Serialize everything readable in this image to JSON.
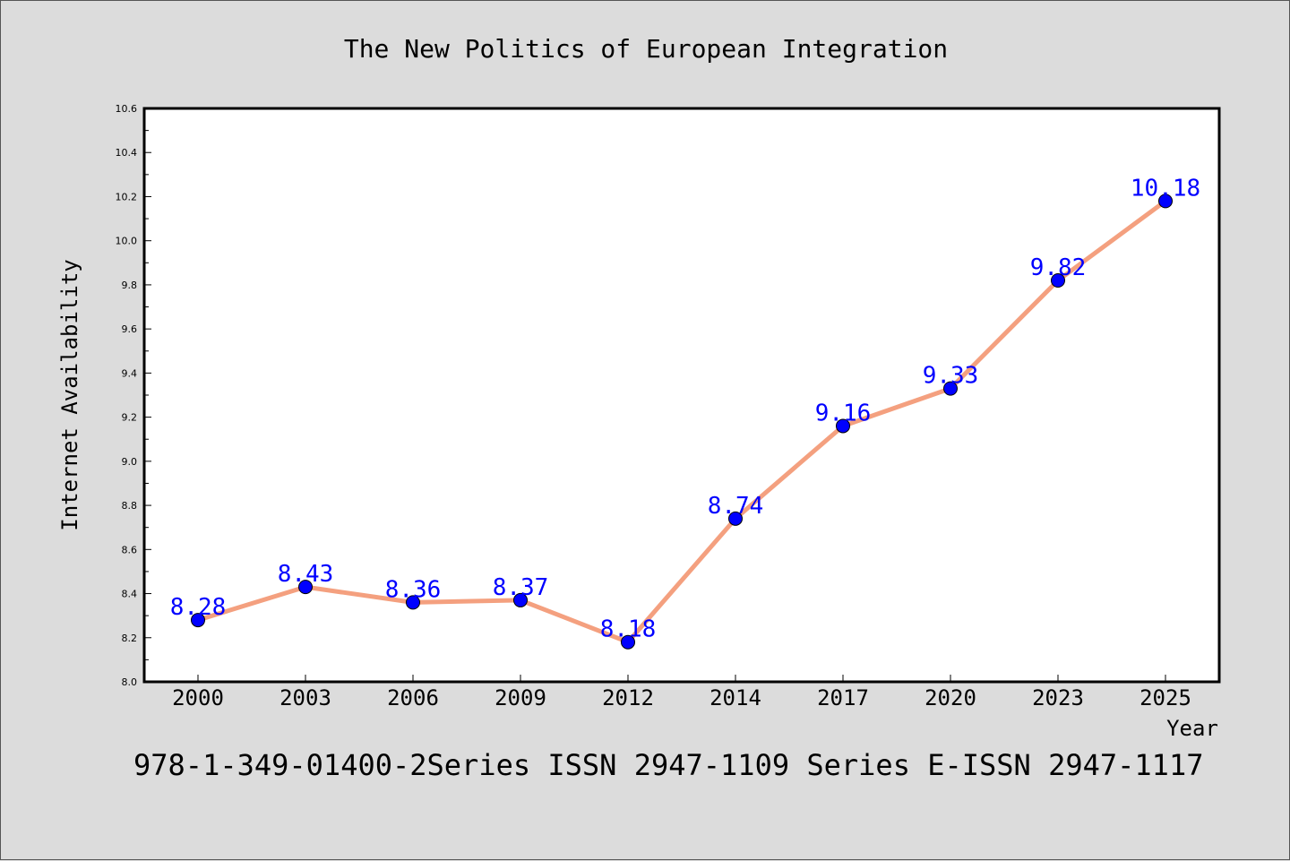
{
  "chart_data": {
    "type": "line",
    "title": "The New Politics of European Integration",
    "xlabel": "Year",
    "ylabel": "Internet Availability",
    "categories": [
      "2000",
      "2003",
      "2006",
      "2009",
      "2012",
      "2014",
      "2017",
      "2020",
      "2023",
      "2025"
    ],
    "series": [
      {
        "values": [
          8.28,
          8.43,
          8.36,
          8.37,
          8.18,
          8.74,
          9.16,
          9.33,
          9.82,
          10.18
        ],
        "line_color": "#f4a07f",
        "marker_color": "#0000ff"
      }
    ],
    "data_labels": [
      "8.28",
      "8.43",
      "8.36",
      "8.37",
      "8.18",
      "8.74",
      "9.16",
      "9.33",
      "9.82",
      "10.18"
    ],
    "ylim": [
      8.0,
      10.6
    ],
    "yticks": [
      "8.0",
      "8.2",
      "8.4",
      "8.6",
      "8.8",
      "9.0",
      "9.2",
      "9.4",
      "9.6",
      "9.8",
      "10.0",
      "10.2",
      "10.4",
      "10.6"
    ],
    "grid": false,
    "legend": "none"
  },
  "footer": "978-1-349-01400-2Series ISSN 2947-1109 Series E-ISSN 2947-1117"
}
